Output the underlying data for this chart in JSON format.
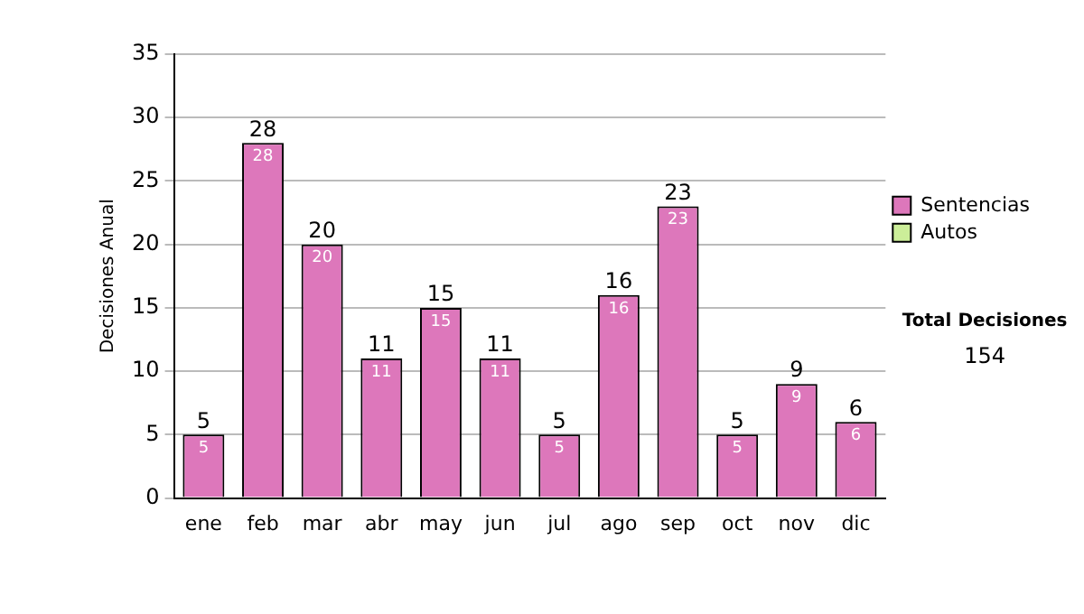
{
  "chart_data": {
    "type": "bar",
    "ylabel": "Decisiones Anual",
    "categories": [
      "ene",
      "feb",
      "mar",
      "abr",
      "may",
      "jun",
      "jul",
      "ago",
      "sep",
      "oct",
      "nov",
      "dic"
    ],
    "series": [
      {
        "name": "Sentencias",
        "color": "#dd77bb",
        "values": [
          5,
          28,
          20,
          11,
          15,
          11,
          5,
          16,
          23,
          5,
          9,
          6
        ]
      },
      {
        "name": "Autos",
        "color": "#ccee99",
        "values": [
          null,
          null,
          null,
          null,
          null,
          null,
          null,
          null,
          null,
          null,
          null,
          null
        ]
      }
    ],
    "ylim": [
      0,
      35
    ],
    "yticks": [
      0,
      5,
      10,
      15,
      20,
      25,
      30,
      35
    ],
    "grid": "y",
    "legend": "right",
    "data_labels": true,
    "annotations": [
      "Total Decisiones",
      "154",
      {
        "text": "5",
        "x": "ene",
        "y": 5
      },
      {
        "text": "28",
        "x": "feb",
        "y": 28
      },
      {
        "text": "20",
        "x": "mar",
        "y": 20
      },
      {
        "text": "11",
        "x": "abr",
        "y": 11
      },
      {
        "text": "15",
        "x": "may",
        "y": 15
      },
      {
        "text": "11",
        "x": "jun",
        "y": 11
      },
      {
        "text": "5",
        "x": "jul",
        "y": 5
      },
      {
        "text": "16",
        "x": "ago",
        "y": 16
      },
      {
        "text": "23",
        "x": "sep",
        "y": 23
      },
      {
        "text": "5",
        "x": "oct",
        "y": 5
      },
      {
        "text": "9",
        "x": "nov",
        "y": 9
      },
      {
        "text": "6",
        "x": "dic",
        "y": 6
      }
    ]
  }
}
